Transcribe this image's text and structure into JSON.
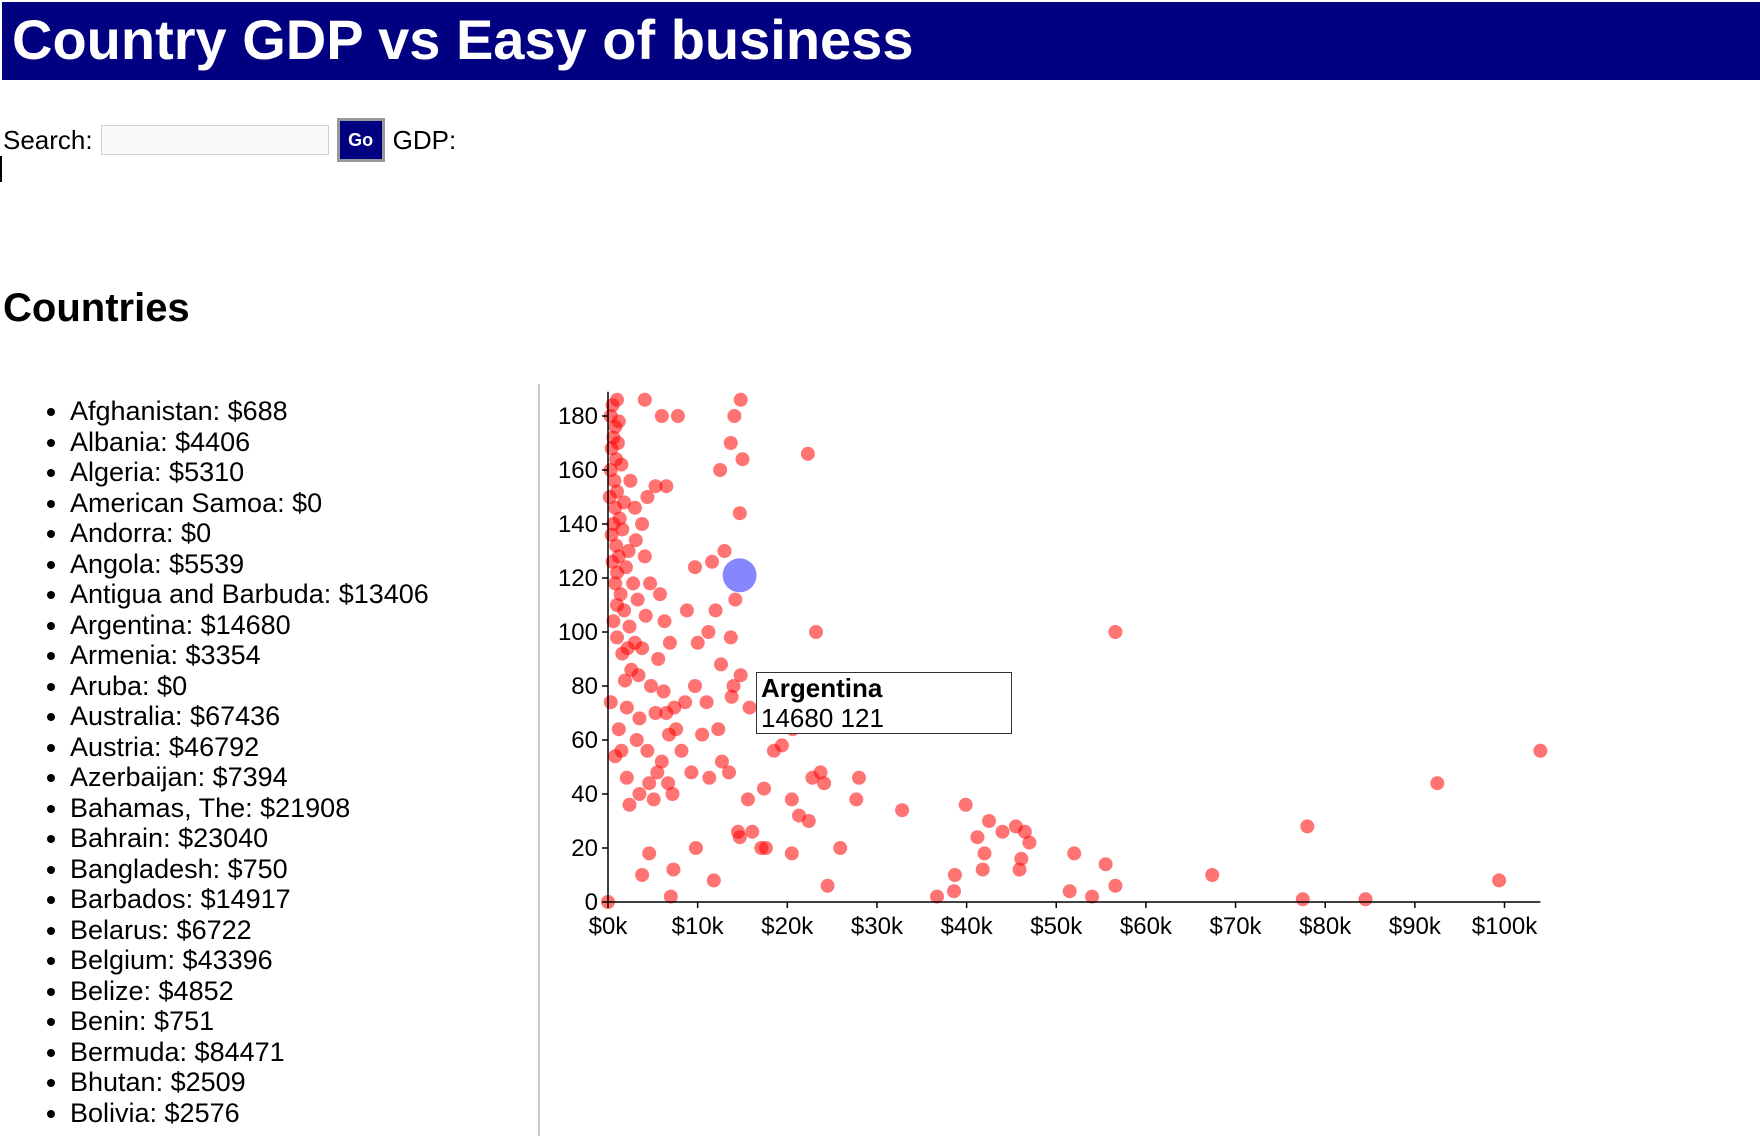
{
  "header": {
    "title": "Country GDP vs Easy of business"
  },
  "search": {
    "label": "Search:",
    "value": "",
    "placeholder": "",
    "go_label": "Go",
    "gdp_label": "GDP:"
  },
  "countries": {
    "heading": "Countries",
    "items": [
      "Afghanistan: $688",
      "Albania: $4406",
      "Algeria: $5310",
      "American Samoa: $0",
      "Andorra: $0",
      "Angola: $5539",
      "Antigua and Barbuda: $13406",
      "Argentina: $14680",
      "Armenia: $3354",
      "Aruba: $0",
      "Australia: $67436",
      "Austria: $46792",
      "Azerbaijan: $7394",
      "Bahamas, The: $21908",
      "Bahrain: $23040",
      "Bangladesh: $750",
      "Barbados: $14917",
      "Belarus: $6722",
      "Belgium: $43396",
      "Belize: $4852",
      "Benin: $751",
      "Bermuda: $84471",
      "Bhutan: $2509",
      "Bolivia: $2576"
    ]
  },
  "tooltip": {
    "name": "Argentina",
    "values": "14680 121"
  },
  "colors": {
    "title_bar": "#000080",
    "point": "#ff0000",
    "highlight": "#7f7fff"
  },
  "chart_data": {
    "type": "scatter",
    "title": "",
    "xlabel": "",
    "ylabel": "",
    "xlim": [
      0,
      104000
    ],
    "ylim": [
      0,
      189
    ],
    "x_ticks": [
      0,
      10000,
      20000,
      30000,
      40000,
      50000,
      60000,
      70000,
      80000,
      90000,
      100000
    ],
    "x_tick_labels": [
      "$0k",
      "$10k",
      "$20k",
      "$30k",
      "$40k",
      "$50k",
      "$60k",
      "$70k",
      "$80k",
      "$90k",
      "$100k"
    ],
    "y_ticks": [
      0,
      20,
      40,
      60,
      80,
      100,
      120,
      140,
      160,
      180
    ],
    "y_tick_labels": [
      "0",
      "20",
      "40",
      "60",
      "80",
      "100",
      "120",
      "140",
      "160",
      "180"
    ],
    "grid": false,
    "highlight": {
      "name": "Argentina",
      "x": 14680,
      "y": 121
    },
    "points": [
      [
        0,
        0
      ],
      [
        300,
        180
      ],
      [
        500,
        184
      ],
      [
        800,
        176
      ],
      [
        1000,
        186
      ],
      [
        600,
        172
      ],
      [
        400,
        168
      ],
      [
        1200,
        178
      ],
      [
        900,
        164
      ],
      [
        300,
        160
      ],
      [
        700,
        156
      ],
      [
        1100,
        170
      ],
      [
        1500,
        162
      ],
      [
        200,
        150
      ],
      [
        800,
        146
      ],
      [
        1000,
        152
      ],
      [
        600,
        140
      ],
      [
        1300,
        142
      ],
      [
        1800,
        148
      ],
      [
        400,
        136
      ],
      [
        900,
        132
      ],
      [
        1200,
        128
      ],
      [
        1600,
        138
      ],
      [
        500,
        126
      ],
      [
        1000,
        122
      ],
      [
        2000,
        124
      ],
      [
        2800,
        118
      ],
      [
        3300,
        112
      ],
      [
        800,
        118
      ],
      [
        1400,
        114
      ],
      [
        600,
        104
      ],
      [
        1800,
        108
      ],
      [
        2400,
        102
      ],
      [
        1000,
        98
      ],
      [
        2200,
        94
      ],
      [
        1600,
        92
      ],
      [
        3000,
        96
      ],
      [
        2600,
        86
      ],
      [
        3400,
        84
      ],
      [
        1900,
        82
      ],
      [
        1000,
        110
      ],
      [
        2300,
        130
      ],
      [
        3100,
        134
      ],
      [
        3800,
        140
      ],
      [
        4100,
        128
      ],
      [
        4400,
        150
      ],
      [
        5300,
        154
      ],
      [
        6500,
        154
      ],
      [
        3000,
        146
      ],
      [
        2500,
        156
      ],
      [
        4700,
        118
      ],
      [
        5800,
        114
      ],
      [
        4200,
        106
      ],
      [
        6300,
        104
      ],
      [
        3800,
        94
      ],
      [
        5600,
        90
      ],
      [
        6900,
        96
      ],
      [
        4800,
        80
      ],
      [
        6200,
        78
      ],
      [
        7400,
        72
      ],
      [
        5300,
        70
      ],
      [
        6500,
        70
      ],
      [
        3500,
        68
      ],
      [
        6800,
        62
      ],
      [
        7600,
        64
      ],
      [
        3200,
        60
      ],
      [
        4400,
        56
      ],
      [
        6000,
        52
      ],
      [
        8200,
        56
      ],
      [
        5500,
        48
      ],
      [
        4600,
        44
      ],
      [
        6700,
        44
      ],
      [
        3500,
        40
      ],
      [
        5100,
        38
      ],
      [
        7200,
        40
      ],
      [
        2100,
        72
      ],
      [
        1200,
        64
      ],
      [
        1500,
        56
      ],
      [
        300,
        74
      ],
      [
        800,
        54
      ],
      [
        14000,
        80
      ],
      [
        12600,
        88
      ],
      [
        13800,
        76
      ],
      [
        11000,
        74
      ],
      [
        12300,
        64
      ],
      [
        10500,
        62
      ],
      [
        9300,
        48
      ],
      [
        11300,
        46
      ],
      [
        12700,
        52
      ],
      [
        13500,
        48
      ],
      [
        9700,
        80
      ],
      [
        8600,
        74
      ],
      [
        10000,
        96
      ],
      [
        11200,
        100
      ],
      [
        12000,
        108
      ],
      [
        8800,
        108
      ],
      [
        9700,
        124
      ],
      [
        11600,
        126
      ],
      [
        14700,
        144
      ],
      [
        13000,
        130
      ],
      [
        12500,
        160
      ],
      [
        15000,
        164
      ],
      [
        13700,
        170
      ],
      [
        14100,
        180
      ],
      [
        14800,
        186
      ],
      [
        4100,
        186
      ],
      [
        6000,
        180
      ],
      [
        7800,
        180
      ],
      [
        14200,
        112
      ],
      [
        13700,
        98
      ],
      [
        14800,
        84
      ],
      [
        15800,
        72
      ],
      [
        15600,
        38
      ],
      [
        14500,
        26
      ],
      [
        14700,
        24
      ],
      [
        16100,
        26
      ],
      [
        17400,
        42
      ],
      [
        17100,
        20
      ],
      [
        19400,
        58
      ],
      [
        20600,
        64
      ],
      [
        22000,
        76
      ],
      [
        23200,
        100
      ],
      [
        22300,
        166
      ],
      [
        23700,
        48
      ],
      [
        24100,
        44
      ],
      [
        21300,
        32
      ],
      [
        22400,
        30
      ],
      [
        20500,
        38
      ],
      [
        20500,
        18
      ],
      [
        17600,
        20
      ],
      [
        18500,
        56
      ],
      [
        22800,
        46
      ],
      [
        28000,
        46
      ],
      [
        27700,
        38
      ],
      [
        25900,
        20
      ],
      [
        24500,
        6
      ],
      [
        33500,
        68
      ],
      [
        32800,
        34
      ],
      [
        40600,
        80
      ],
      [
        39900,
        36
      ],
      [
        41200,
        24
      ],
      [
        41800,
        12
      ],
      [
        42500,
        30
      ],
      [
        44000,
        26
      ],
      [
        42000,
        18
      ],
      [
        45500,
        28
      ],
      [
        46500,
        26
      ],
      [
        46100,
        16
      ],
      [
        45900,
        12
      ],
      [
        47000,
        22
      ],
      [
        38700,
        10
      ],
      [
        36700,
        2
      ],
      [
        38600,
        4
      ],
      [
        52000,
        18
      ],
      [
        51500,
        4
      ],
      [
        54000,
        2
      ],
      [
        55500,
        14
      ],
      [
        56600,
        6
      ],
      [
        56600,
        100
      ],
      [
        67400,
        10
      ],
      [
        77500,
        1
      ],
      [
        78000,
        28
      ],
      [
        84500,
        1
      ],
      [
        92500,
        44
      ],
      [
        99400,
        8
      ],
      [
        104000,
        56
      ],
      [
        11800,
        8
      ],
      [
        7300,
        12
      ],
      [
        3800,
        10
      ],
      [
        4600,
        18
      ],
      [
        7000,
        2
      ],
      [
        9800,
        20
      ],
      [
        2100,
        46
      ],
      [
        2400,
        36
      ]
    ]
  }
}
